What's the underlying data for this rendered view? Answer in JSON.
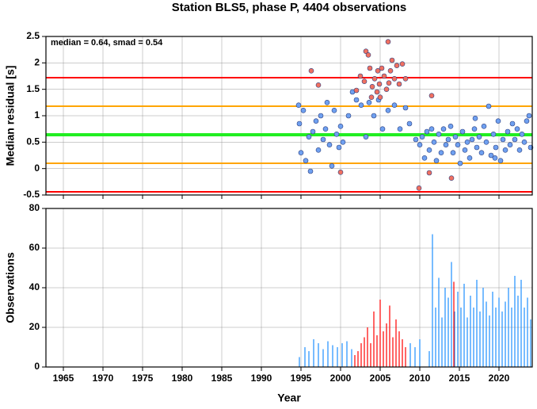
{
  "title": "Station BLS5, phase P, 4404 observations",
  "chart_data": [
    {
      "type": "scatter",
      "ylabel": "Median residual [s]",
      "annotation": "median = 0.64, smad = 0.54",
      "xlim": [
        1962.8,
        2024.2
      ],
      "xticks": [
        1965,
        1970,
        1975,
        1980,
        1985,
        1990,
        1995,
        2000,
        2005,
        2010,
        2015,
        2020
      ],
      "ylim": [
        -0.5,
        2.5
      ],
      "yticks": [
        -0.5,
        0.0,
        0.5,
        1.0,
        1.5,
        2.0,
        2.5
      ],
      "grid": true,
      "reference_lines": [
        {
          "value": 1.72,
          "color": "#ff0000"
        },
        {
          "value": 1.18,
          "color": "#ffa500"
        },
        {
          "value": 0.64,
          "color": "#22ee22"
        },
        {
          "value": 0.1,
          "color": "#ffa500"
        },
        {
          "value": -0.44,
          "color": "#ff0000"
        }
      ],
      "series": [
        {
          "color": "#6fa0f0",
          "x": [
            1994.7,
            1994.8,
            1995.0,
            1995.3,
            1995.6,
            1996.0,
            1996.2,
            1996.5,
            1996.9,
            1997.2,
            1997.5,
            1997.8,
            1998.1,
            1998.3,
            1998.6,
            1998.9,
            1999.2,
            1999.5,
            1999.8,
            2000.0,
            2000.3,
            2001.0,
            2001.5,
            2002.0,
            2002.6,
            2003.2,
            2003.6,
            2004.2,
            2004.8,
            2005.3,
            2006.0,
            2006.8,
            2007.5,
            2008.2,
            2008.7,
            2009.5,
            2010.0,
            2010.3,
            2010.6,
            2010.9,
            2011.2,
            2011.5,
            2011.8,
            2012.1,
            2012.4,
            2012.7,
            2013.0,
            2013.3,
            2013.6,
            2013.9,
            2014.2,
            2014.5,
            2014.8,
            2015.1,
            2015.4,
            2015.7,
            2016.0,
            2016.3,
            2016.6,
            2016.9,
            2017.2,
            2017.5,
            2017.8,
            2018.1,
            2018.4,
            2018.7,
            2019.0,
            2019.3,
            2019.6,
            2019.9,
            2020.2,
            2020.5,
            2020.8,
            2021.1,
            2021.4,
            2021.7,
            2022.0,
            2022.3,
            2022.6,
            2022.9,
            2023.2,
            2023.5,
            2023.8,
            2024.0,
            2017.0,
            2019.5
          ],
          "values": [
            1.2,
            0.85,
            0.3,
            1.1,
            0.15,
            0.6,
            -0.05,
            0.7,
            0.9,
            0.35,
            1.0,
            0.55,
            0.75,
            1.25,
            0.45,
            0.05,
            1.1,
            0.65,
            0.4,
            0.8,
            0.5,
            1.0,
            1.45,
            1.3,
            1.2,
            0.6,
            1.25,
            1.0,
            1.3,
            0.75,
            1.1,
            1.2,
            0.75,
            1.15,
            0.85,
            0.55,
            0.45,
            0.6,
            0.2,
            0.7,
            0.35,
            0.75,
            0.5,
            0.15,
            0.65,
            0.3,
            0.75,
            0.45,
            0.55,
            0.8,
            0.3,
            0.6,
            0.45,
            0.1,
            0.7,
            0.35,
            0.5,
            0.2,
            0.55,
            0.75,
            0.4,
            0.6,
            0.3,
            0.8,
            0.5,
            1.18,
            0.25,
            0.65,
            0.4,
            0.9,
            0.15,
            0.55,
            0.35,
            0.7,
            0.45,
            0.85,
            0.55,
            0.75,
            0.35,
            0.65,
            0.5,
            0.9,
            1.0,
            0.4,
            0.95,
            0.2
          ]
        },
        {
          "color": "#f07060",
          "x": [
            1996.3,
            1997.2,
            2000.0,
            2002.0,
            2002.5,
            2003.0,
            2003.2,
            2003.5,
            2003.7,
            2004.0,
            2004.3,
            2004.6,
            2004.9,
            2005.2,
            2005.5,
            2005.8,
            2006.0,
            2006.3,
            2006.5,
            2006.8,
            2007.1,
            2007.4,
            2007.8,
            2008.2,
            2009.9,
            2011.2,
            2011.5,
            2014.0,
            2003.9,
            2004.7,
            2005.0,
            2006.1
          ],
          "values": [
            1.85,
            1.58,
            -0.07,
            1.48,
            1.75,
            1.65,
            2.22,
            2.15,
            1.9,
            1.55,
            1.7,
            1.45,
            1.6,
            1.9,
            1.75,
            1.5,
            2.4,
            1.85,
            2.05,
            1.7,
            1.95,
            1.6,
            1.98,
            1.7,
            -0.37,
            -0.08,
            1.38,
            -0.18,
            1.35,
            1.85,
            1.35,
            1.62
          ]
        }
      ]
    },
    {
      "type": "bar",
      "ylabel": "Observations",
      "xlabel": "Year",
      "xlim": [
        1962.8,
        2024.2
      ],
      "xticks": [
        1965,
        1970,
        1975,
        1980,
        1985,
        1990,
        1995,
        2000,
        2005,
        2010,
        2015,
        2020
      ],
      "ylim": [
        0,
        80
      ],
      "yticks": [
        0,
        20,
        40,
        60,
        80
      ],
      "grid": true,
      "series": [
        {
          "color": "#1e90ff",
          "x": [
            1994.8,
            1995.5,
            1996.0,
            1996.6,
            1997.2,
            1997.8,
            1998.4,
            1999.0,
            1999.6,
            2000.2,
            2000.8,
            2001.4,
            2008.8,
            2009.4,
            2010.0,
            2011.2,
            2011.6,
            2012.0,
            2012.4,
            2012.8,
            2013.2,
            2013.6,
            2014.0,
            2014.4,
            2014.8,
            2015.2,
            2015.6,
            2016.0,
            2016.4,
            2016.8,
            2017.2,
            2017.6,
            2018.0,
            2018.4,
            2018.8,
            2019.2,
            2019.6,
            2020.0,
            2020.4,
            2020.8,
            2021.2,
            2021.6,
            2022.0,
            2022.4,
            2022.8,
            2023.2,
            2023.6,
            2024.0
          ],
          "values": [
            5,
            10,
            8,
            14,
            12,
            9,
            13,
            11,
            10,
            12,
            13,
            9,
            12,
            10,
            14,
            8,
            67,
            30,
            45,
            25,
            40,
            35,
            53,
            28,
            38,
            30,
            42,
            25,
            36,
            30,
            44,
            28,
            40,
            33,
            26,
            38,
            30,
            35,
            28,
            33,
            40,
            30,
            46,
            36,
            44,
            30,
            35,
            24
          ]
        },
        {
          "color": "#ff0000",
          "x": [
            2001.8,
            2002.2,
            2002.6,
            2003.0,
            2003.4,
            2003.8,
            2004.2,
            2004.6,
            2005.0,
            2005.4,
            2005.8,
            2006.2,
            2006.6,
            2007.0,
            2007.4,
            2007.8,
            2008.2,
            2014.3
          ],
          "values": [
            6,
            8,
            12,
            15,
            20,
            12,
            28,
            16,
            34,
            18,
            22,
            31,
            15,
            24,
            18,
            14,
            10,
            43
          ]
        }
      ]
    }
  ]
}
